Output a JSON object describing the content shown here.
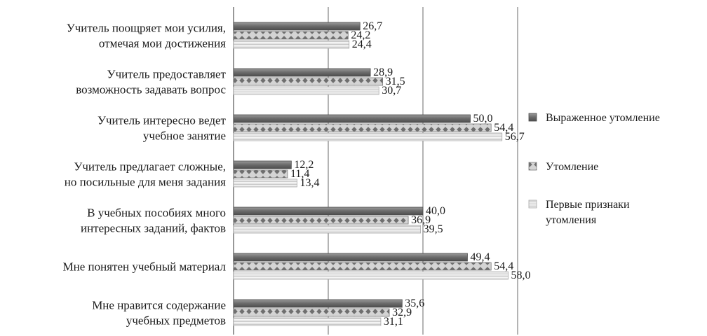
{
  "chart_data": {
    "type": "bar",
    "orientation": "horizontal",
    "categories": [
      [
        "Учитель поощряет мои усилия,",
        "отмечая мои достижения"
      ],
      [
        "Учитель предоставляет",
        "возможность задавать вопрос"
      ],
      [
        "Учитель интересно ведет",
        "учебное занятие"
      ],
      [
        "Учитель предлагает сложные,",
        "но посильные для меня задания"
      ],
      [
        "В учебных пособиях много",
        "интересных заданий, фактов"
      ],
      [
        "Мне понятен учебный материал"
      ],
      [
        "Мне нравится содержание",
        "учебных предметов"
      ]
    ],
    "series": [
      {
        "name": [
          "Выраженное утомление"
        ],
        "values": [
          26.7,
          28.9,
          50.0,
          12.2,
          40.0,
          49.4,
          35.6
        ],
        "labels": [
          "26,7",
          "28,9",
          "50,0",
          "12,2",
          "40,0",
          "49,4",
          "35,6"
        ],
        "color": "#6e6e6e",
        "pattern": "solid-dark"
      },
      {
        "name": [
          "Утомление"
        ],
        "values": [
          24.2,
          31.5,
          54.4,
          11.4,
          36.9,
          54.4,
          32.9
        ],
        "labels": [
          "24,2",
          "31,5",
          "54,4",
          "11,4",
          "36,9",
          "54,4",
          "32,9"
        ],
        "color": "#8a8a8a",
        "pattern": "diamond-dots"
      },
      {
        "name": [
          "Первые признаки",
          "утомления"
        ],
        "values": [
          24.4,
          30.7,
          56.7,
          13.4,
          39.5,
          58.0,
          31.1
        ],
        "labels": [
          "24,4",
          "30,7",
          "56,7",
          "13,4",
          "39,5",
          "58,0",
          "31,1"
        ],
        "color": "#d8d8d8",
        "pattern": "light-stripes"
      }
    ],
    "xlim": [
      0,
      60
    ],
    "grid": true,
    "legend_position": "right"
  }
}
